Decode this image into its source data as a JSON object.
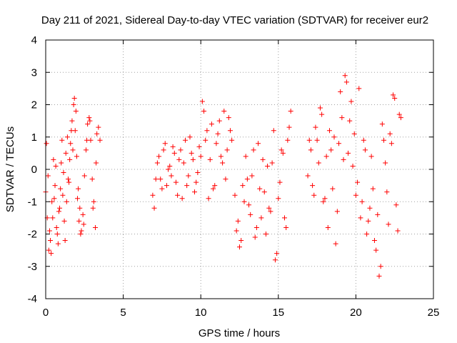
{
  "chart_data": {
    "type": "scatter",
    "title": "Day 211 of 2021, Sidereal Day-to-day VTEC variation (SDTVAR) for receiver eur2",
    "xlabel": "GPS time / hours",
    "ylabel": "SDTVAR / TECUs",
    "xlim": [
      0,
      25
    ],
    "ylim": [
      -4,
      4
    ],
    "xticks": [
      0,
      5,
      10,
      15,
      20,
      25
    ],
    "yticks": [
      -4,
      -3,
      -2,
      -1,
      0,
      1,
      2,
      3,
      4
    ],
    "grid": true,
    "marker": "+",
    "color": "#ff0000",
    "series": [
      {
        "name": "SDTVAR",
        "x": [
          0.0,
          0.1,
          0.2,
          0.3,
          0.4,
          0.5,
          0.6,
          0.7,
          0.8,
          0.9,
          1.0,
          1.1,
          1.2,
          1.3,
          1.4,
          1.5,
          1.6,
          1.7,
          1.8,
          1.9,
          2.0,
          2.1,
          2.2,
          2.3,
          2.4,
          2.5,
          2.6,
          2.7,
          2.8,
          2.9,
          3.0,
          3.1,
          3.2,
          3.3,
          3.4,
          3.5,
          0.05,
          0.15,
          0.25,
          0.35,
          0.45,
          0.55,
          0.65,
          0.75,
          0.85,
          0.95,
          1.05,
          1.15,
          1.25,
          1.35,
          1.45,
          1.55,
          1.65,
          1.75,
          1.85,
          1.95,
          2.05,
          2.15,
          2.25,
          2.45,
          2.65,
          2.85,
          3.05,
          3.25,
          6.9,
          7.0,
          7.2,
          7.4,
          7.6,
          7.8,
          8.0,
          8.2,
          8.4,
          8.6,
          8.8,
          9.0,
          9.2,
          9.4,
          9.6,
          9.8,
          10.0,
          10.2,
          10.4,
          10.6,
          10.8,
          11.0,
          11.2,
          11.4,
          11.6,
          11.8,
          12.0,
          7.1,
          7.3,
          7.5,
          7.7,
          7.9,
          8.1,
          8.3,
          8.5,
          8.7,
          8.9,
          9.1,
          9.3,
          9.5,
          9.7,
          9.9,
          10.1,
          10.3,
          10.5,
          10.7,
          10.9,
          11.1,
          11.3,
          11.5,
          11.7,
          11.9,
          12.2,
          12.4,
          12.6,
          12.8,
          13.0,
          13.2,
          13.4,
          13.6,
          13.8,
          14.0,
          14.2,
          14.4,
          14.6,
          14.8,
          15.0,
          15.2,
          15.4,
          15.6,
          15.8,
          12.3,
          12.5,
          12.7,
          12.9,
          13.1,
          13.3,
          13.5,
          13.7,
          13.9,
          14.1,
          14.3,
          14.5,
          14.7,
          14.9,
          15.1,
          15.3,
          15.5,
          15.7,
          16.9,
          17.1,
          17.3,
          17.5,
          17.7,
          17.9,
          18.1,
          18.3,
          18.5,
          18.7,
          18.9,
          19.1,
          19.3,
          19.5,
          19.7,
          19.9,
          20.1,
          20.3,
          20.5,
          20.7,
          20.9,
          21.1,
          21.3,
          21.5,
          21.7,
          21.9,
          22.1,
          22.3,
          22.5,
          22.7,
          22.9,
          17.0,
          17.2,
          17.4,
          17.6,
          17.8,
          18.0,
          18.2,
          18.4,
          18.6,
          18.8,
          19.0,
          19.2,
          19.4,
          19.6,
          19.8,
          20.0,
          20.2,
          20.4,
          20.6,
          20.8,
          21.0,
          21.2,
          21.4,
          21.6,
          21.8,
          22.0,
          22.2,
          22.4,
          22.6,
          22.8
        ],
        "y": [
          -0.7,
          -1.5,
          -2.5,
          -2.2,
          -1.0,
          0.3,
          -0.5,
          -1.8,
          -2.3,
          -1.2,
          0.2,
          -0.8,
          -1.6,
          0.5,
          1.0,
          -0.4,
          0.8,
          1.5,
          2.0,
          1.2,
          0.4,
          -0.6,
          -1.2,
          -1.9,
          -1.4,
          -0.2,
          0.6,
          1.4,
          1.6,
          0.9,
          -0.3,
          -1.0,
          -1.8,
          1.1,
          1.3,
          0.9,
          0.8,
          -0.2,
          -1.9,
          -2.6,
          -1.5,
          -0.9,
          0.1,
          -2.0,
          -1.3,
          -0.6,
          0.9,
          -0.1,
          -2.2,
          -1.0,
          -0.3,
          0.3,
          1.2,
          0.6,
          2.2,
          1.8,
          -0.9,
          -1.6,
          -2.0,
          -1.7,
          0.9,
          1.5,
          -1.2,
          0.2,
          -0.8,
          -1.2,
          0.2,
          -0.3,
          0.6,
          -0.5,
          0.1,
          0.7,
          -0.4,
          0.3,
          -0.9,
          0.9,
          -0.2,
          0.5,
          -0.7,
          -0.1,
          0.4,
          1.8,
          1.2,
          0.3,
          -0.6,
          0.8,
          1.5,
          0.2,
          -0.3,
          1.6,
          0.9,
          -0.3,
          0.4,
          -0.6,
          0.8,
          0.0,
          -0.2,
          0.5,
          -0.8,
          0.6,
          0.2,
          -0.5,
          1.0,
          0.3,
          -0.4,
          0.7,
          2.1,
          0.9,
          -0.9,
          1.4,
          -0.5,
          1.1,
          0.4,
          1.8,
          0.6,
          1.2,
          -0.8,
          -1.6,
          -2.2,
          -1.0,
          -0.3,
          -1.4,
          0.6,
          -1.8,
          -0.6,
          0.3,
          -2.0,
          -1.2,
          0.2,
          -2.8,
          -0.9,
          0.6,
          -1.5,
          0.9,
          1.8,
          -1.9,
          -2.4,
          -0.5,
          0.4,
          -1.1,
          -0.2,
          -2.1,
          0.8,
          -1.5,
          -0.7,
          0.1,
          -1.3,
          1.2,
          -2.6,
          -0.4,
          0.5,
          -1.8,
          1.3,
          -0.2,
          0.6,
          -0.8,
          0.9,
          1.9,
          -1.0,
          0.4,
          1.2,
          -0.6,
          -2.3,
          0.8,
          1.6,
          2.9,
          0.5,
          2.1,
          1.1,
          -0.4,
          -1.5,
          0.9,
          -2.0,
          -1.2,
          -0.6,
          -2.5,
          -3.3,
          1.4,
          0.2,
          -1.7,
          0.8,
          2.2,
          -1.9,
          1.6,
          0.9,
          -0.5,
          1.3,
          0.2,
          1.7,
          -0.9,
          -1.8,
          0.6,
          1.0,
          -1.3,
          2.4,
          0.3,
          2.7,
          1.5,
          0.1,
          -0.8,
          2.5,
          -1.0,
          0.6,
          -1.6,
          0.4,
          -2.2,
          -1.4,
          -3.0,
          0.9,
          -0.7,
          1.1,
          2.3,
          -1.1,
          1.7
        ]
      }
    ]
  }
}
